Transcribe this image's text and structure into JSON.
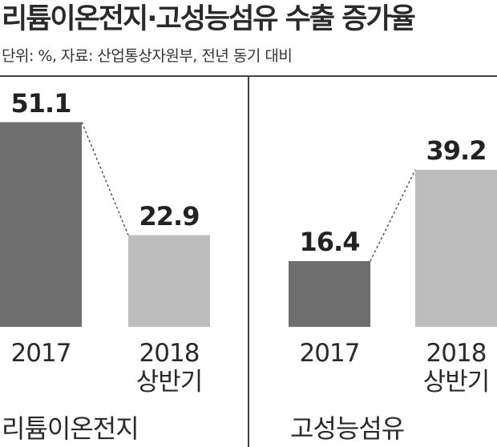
{
  "title": "리튬이온전지·고성능섬유 수출 증가율",
  "subtitle": "단위: %, 자료: 산업통상자원부, 전년 동기 대비",
  "colors": {
    "dark_bar": "#6e6e6e",
    "light_bar": "#bdbdbd",
    "divider": "#444444",
    "connector": "#555555"
  },
  "chart_data": [
    {
      "type": "bar",
      "group_label": "리튬이온전지",
      "categories": [
        {
          "year": "2017",
          "sub": ""
        },
        {
          "year": "2018",
          "sub": "상반기"
        }
      ],
      "values": [
        51.1,
        22.9
      ],
      "value_labels": [
        "51.1",
        "22.9"
      ],
      "ylim": [
        0,
        60
      ]
    },
    {
      "type": "bar",
      "group_label": "고성능섬유",
      "categories": [
        {
          "year": "2017",
          "sub": ""
        },
        {
          "year": "2018",
          "sub": "상반기"
        }
      ],
      "values": [
        16.4,
        39.2
      ],
      "value_labels": [
        "16.4",
        "39.2"
      ],
      "ylim": [
        0,
        60
      ]
    }
  ]
}
